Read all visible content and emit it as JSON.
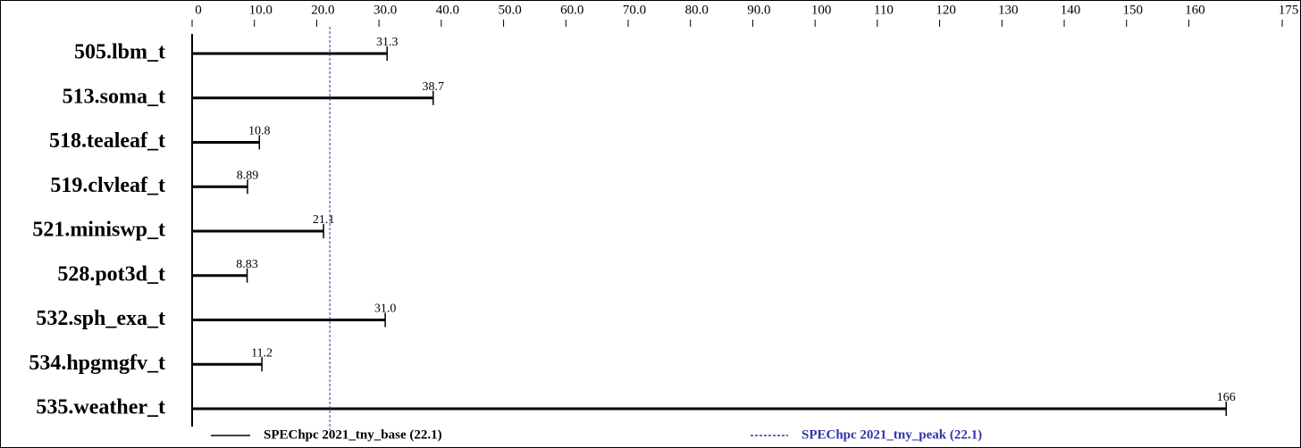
{
  "chart_data": {
    "type": "bar",
    "orientation": "horizontal",
    "categories": [
      "505.lbm_t",
      "513.soma_t",
      "518.tealeaf_t",
      "519.clvleaf_t",
      "521.miniswp_t",
      "528.pot3d_t",
      "532.sph_exa_t",
      "534.hpgmgfv_t",
      "535.weather_t"
    ],
    "series": [
      {
        "name": "SPEChpc 2021_tny_base (22.1)",
        "color": "#000000",
        "values": [
          31.3,
          38.7,
          10.8,
          8.89,
          21.1,
          8.83,
          31.0,
          11.2,
          166
        ],
        "value_labels": [
          "31.3",
          "38.7",
          "10.8",
          "8.89",
          "21.1",
          "8.83",
          "31.0",
          "11.2",
          "166"
        ]
      }
    ],
    "reference_line": {
      "name": "SPEChpc 2021_tny_peak (22.1)",
      "value": 22.1,
      "color": "#3333aa",
      "dashed": true
    },
    "xlim": [
      0,
      175
    ],
    "xticks": [
      0,
      {
        "value": 10,
        "label": "10.0"
      },
      {
        "value": 20,
        "label": "20.0"
      },
      {
        "value": 30,
        "label": "30.0"
      },
      {
        "value": 40,
        "label": "40.0"
      },
      {
        "value": 50,
        "label": "50.0"
      },
      {
        "value": 60,
        "label": "60.0"
      },
      {
        "value": 70,
        "label": "70.0"
      },
      {
        "value": 80,
        "label": "80.0"
      },
      {
        "value": 90,
        "label": "90.0"
      },
      100,
      110,
      120,
      130,
      140,
      150,
      160,
      175
    ]
  }
}
